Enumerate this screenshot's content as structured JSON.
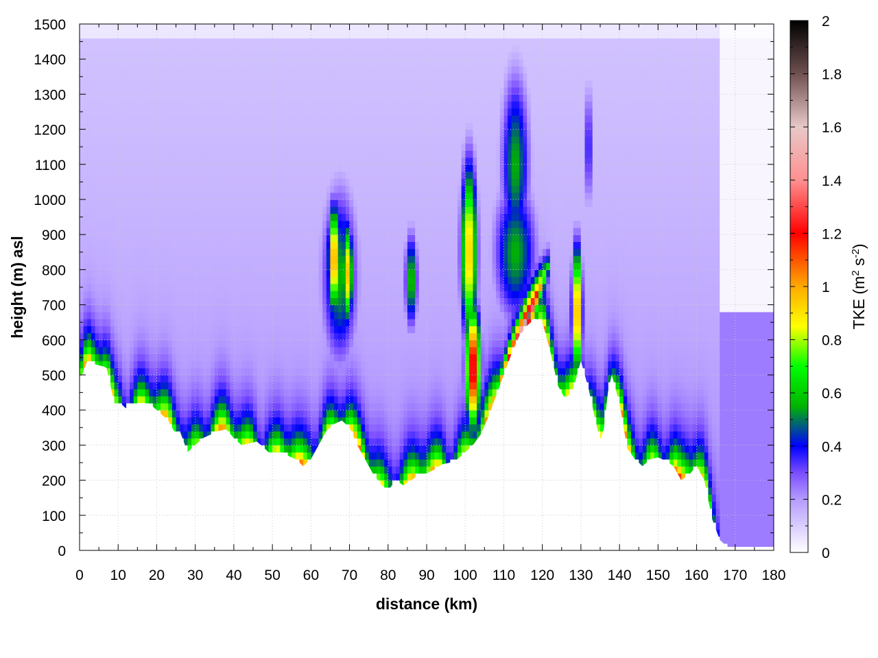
{
  "chart_data": {
    "type": "heatmap",
    "title": "",
    "xlabel": "distance (km)",
    "ylabel": "height (m) asl",
    "xlim": [
      0,
      180
    ],
    "ylim": [
      0,
      1500
    ],
    "x_ticks": [
      0,
      10,
      20,
      30,
      40,
      50,
      60,
      70,
      80,
      90,
      100,
      110,
      120,
      130,
      140,
      150,
      160,
      170,
      180
    ],
    "x_tick_labels": [
      "0",
      "10",
      "20",
      "30",
      "40",
      "50",
      "60",
      "70",
      "80",
      "90",
      "100",
      "110",
      "120",
      "130",
      "140",
      "150",
      "160",
      "170",
      "180"
    ],
    "y_ticks": [
      0,
      100,
      200,
      300,
      400,
      500,
      600,
      700,
      800,
      900,
      1000,
      1100,
      1200,
      1300,
      1400,
      1500
    ],
    "y_tick_labels": [
      "0",
      "100",
      "200",
      "300",
      "400",
      "500",
      "600",
      "700",
      "800",
      "900",
      "1000",
      "1100",
      "1200",
      "1300",
      "1400",
      "1500"
    ],
    "grid": true,
    "colorbar": {
      "label_prefix": "TKE (m",
      "label_exp1": "2",
      "label_mid": " s",
      "label_exp2": "-2",
      "label_suffix": ")",
      "range": [
        0,
        2
      ],
      "ticks": [
        0,
        0.2,
        0.4,
        0.6,
        0.8,
        1,
        1.2,
        1.4,
        1.6,
        1.8,
        2
      ],
      "tick_labels": [
        "0",
        "0.2",
        "0.4",
        "0.6",
        "0.8",
        "1",
        "1.2",
        "1.4",
        "1.6",
        "1.8",
        "2"
      ],
      "stops": [
        {
          "value": 0.0,
          "color": "#ffffff"
        },
        {
          "value": 0.2,
          "color": "#b49bff"
        },
        {
          "value": 0.3,
          "color": "#7a4dff"
        },
        {
          "value": 0.4,
          "color": "#0000ff"
        },
        {
          "value": 0.55,
          "color": "#00b400"
        },
        {
          "value": 0.7,
          "color": "#00ff00"
        },
        {
          "value": 0.85,
          "color": "#ffff00"
        },
        {
          "value": 1.0,
          "color": "#ffaa00"
        },
        {
          "value": 1.2,
          "color": "#ff0000"
        },
        {
          "value": 1.4,
          "color": "#ff9090"
        },
        {
          "value": 1.6,
          "color": "#e8c8c8"
        },
        {
          "value": 1.8,
          "color": "#705050"
        },
        {
          "value": 2.0,
          "color": "#000000"
        }
      ]
    },
    "terrain": {
      "x": [
        0,
        2,
        4,
        6,
        7,
        8,
        9,
        10,
        11,
        12,
        13,
        14,
        15,
        17,
        19,
        21,
        23,
        25,
        26,
        28,
        30,
        32,
        34,
        36,
        38,
        40,
        42,
        44,
        46,
        48,
        50,
        52,
        54,
        56,
        58,
        60,
        62,
        64,
        66,
        68,
        70,
        72,
        74,
        76,
        78,
        80,
        82,
        84,
        86,
        88,
        90,
        92,
        94,
        96,
        98,
        100,
        102,
        104,
        106,
        108,
        110,
        112,
        114,
        116,
        118,
        120,
        122,
        124,
        126,
        128,
        130,
        132,
        134,
        135,
        136,
        137,
        138,
        140,
        142,
        144,
        146,
        148,
        150,
        152,
        154,
        155,
        156,
        158,
        160,
        162,
        164,
        166,
        168,
        170,
        180
      ],
      "height": [
        480,
        540,
        530,
        525,
        520,
        470,
        420,
        410,
        415,
        405,
        420,
        410,
        420,
        420,
        410,
        390,
        370,
        330,
        340,
        280,
        300,
        320,
        330,
        340,
        345,
        320,
        300,
        305,
        310,
        290,
        270,
        280,
        270,
        260,
        240,
        260,
        300,
        340,
        360,
        370,
        350,
        300,
        260,
        220,
        190,
        170,
        200,
        185,
        200,
        215,
        220,
        230,
        245,
        250,
        260,
        280,
        300,
        330,
        380,
        440,
        500,
        560,
        610,
        640,
        660,
        650,
        570,
        470,
        430,
        460,
        540,
        460,
        360,
        310,
        350,
        450,
        500,
        420,
        290,
        260,
        240,
        260,
        265,
        255,
        240,
        220,
        200,
        215,
        240,
        200,
        90,
        30,
        10,
        10,
        10
      ]
    },
    "hotspots": [
      {
        "x": 66,
        "z": 830,
        "tke": 1.05,
        "wx": 1.6,
        "wz": 160
      },
      {
        "x": 69.5,
        "z": 790,
        "tke": 0.95,
        "wx": 1.4,
        "wz": 150
      },
      {
        "x": 67.5,
        "z": 780,
        "tke": 0.55,
        "wx": 5,
        "wz": 270
      },
      {
        "x": 86,
        "z": 770,
        "tke": 0.6,
        "wx": 1.8,
        "wz": 150
      },
      {
        "x": 101,
        "z": 850,
        "tke": 0.95,
        "wx": 2.2,
        "wz": 270
      },
      {
        "x": 102,
        "z": 520,
        "tke": 1.3,
        "wx": 2,
        "wz": 180
      },
      {
        "x": 113,
        "z": 1100,
        "tke": 0.55,
        "wx": 4,
        "wz": 280
      },
      {
        "x": 113,
        "z": 850,
        "tke": 0.55,
        "wx": 6,
        "wz": 220
      },
      {
        "x": 129,
        "z": 680,
        "tke": 1.05,
        "wx": 1.4,
        "wz": 200
      },
      {
        "x": 132,
        "z": 1150,
        "tke": 0.4,
        "wx": 1.2,
        "wz": 200
      }
    ]
  }
}
